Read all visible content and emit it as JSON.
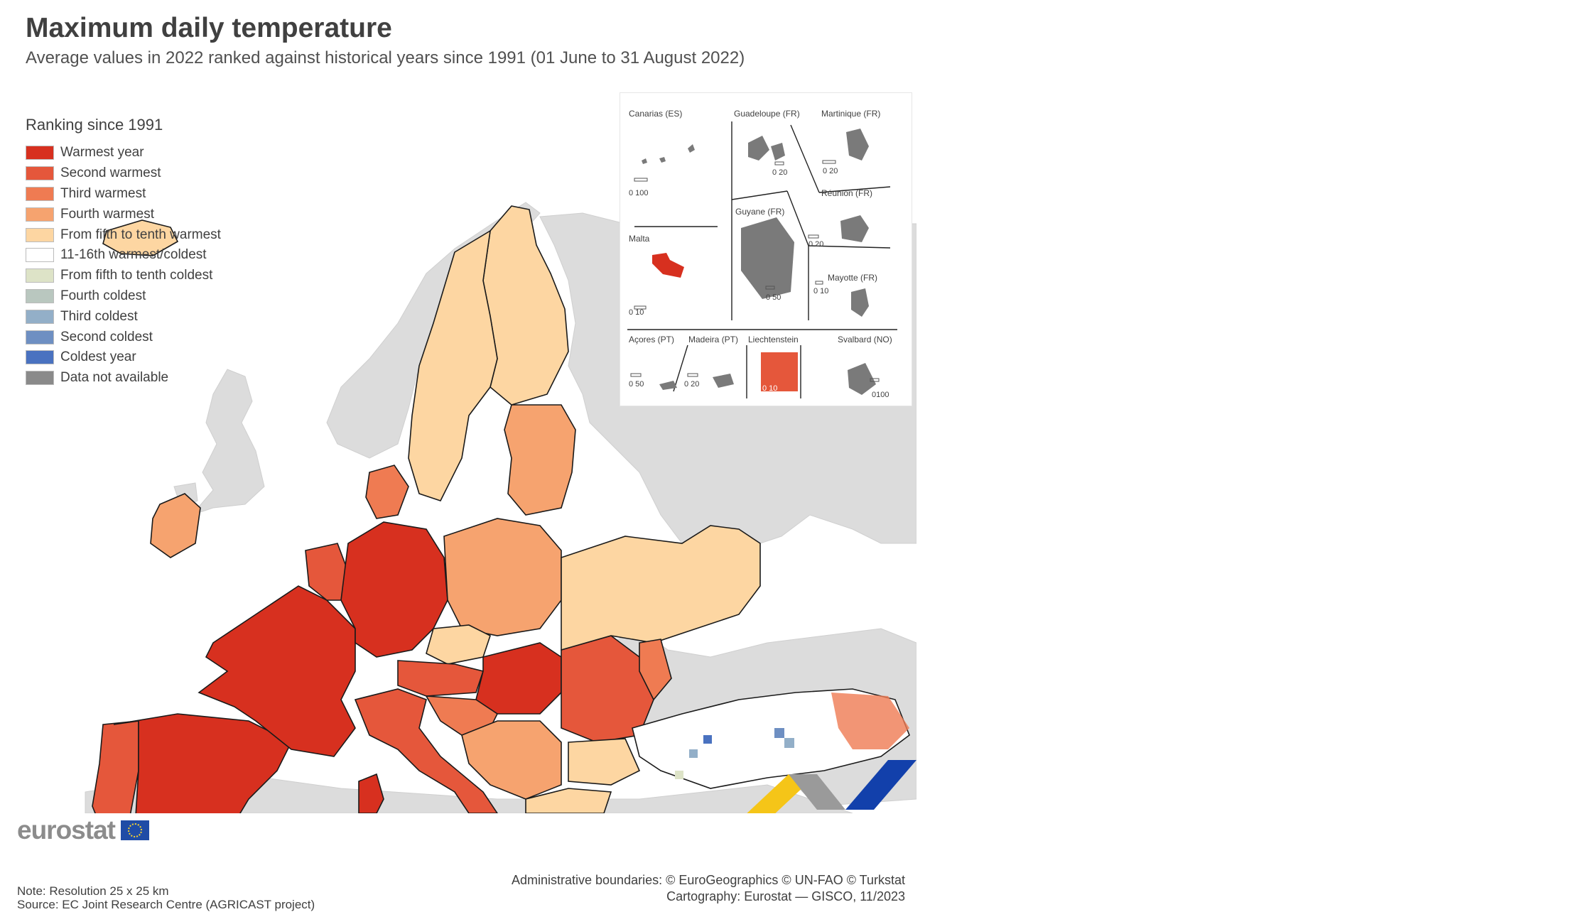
{
  "header": {
    "title": "Maximum daily temperature",
    "subtitle": "Average values in 2022 ranked against historical years since 1991 (01 June to 31 August 2022)"
  },
  "legend": {
    "title": "Ranking since 1991",
    "items": [
      {
        "label": "Warmest year",
        "color": "#d7301f"
      },
      {
        "label": "Second warmest",
        "color": "#e5573b"
      },
      {
        "label": "Third warmest",
        "color": "#ef7b52"
      },
      {
        "label": "Fourth warmest",
        "color": "#f6a36f"
      },
      {
        "label": "From fifth to tenth warmest",
        "color": "#fdd6a2"
      },
      {
        "label": "11-16th warmest/coldest",
        "color": "#ffffff"
      },
      {
        "label": "From fifth to tenth coldest",
        "color": "#dde3c7"
      },
      {
        "label": "Fourth coldest",
        "color": "#b9c7bf"
      },
      {
        "label": "Third coldest",
        "color": "#93afc8"
      },
      {
        "label": "Second coldest",
        "color": "#6e8fc2"
      },
      {
        "label": "Coldest year",
        "color": "#4a72c0"
      },
      {
        "label": "Data not available",
        "color": "#8a8a8a"
      }
    ]
  },
  "insets": {
    "canarias": {
      "label": "Canarias (ES)",
      "scale": "0   100"
    },
    "guadeloupe": {
      "label": "Guadeloupe (FR)",
      "scale": "0  20"
    },
    "martinique": {
      "label": "Martinique (FR)",
      "scale": "0   20"
    },
    "reunion": {
      "label": "Réunion (FR)",
      "scale": "0   20"
    },
    "guyane": {
      "label": "Guyane (FR)",
      "scale": "0 50"
    },
    "malta": {
      "label": "Malta",
      "scale": "0   10"
    },
    "mayotte": {
      "label": "Mayotte (FR)",
      "scale": "0 10"
    },
    "acores": {
      "label": "Açores (PT)",
      "scale": "0 50"
    },
    "madeira": {
      "label": "Madeira (PT)",
      "scale": "0 20"
    },
    "liechtenstein": {
      "label": "Liechtenstein",
      "scale": "0   10"
    },
    "svalbard": {
      "label": "Svalbard (NO)",
      "scale": "0100"
    }
  },
  "footer": {
    "logo": "eurostat",
    "note": "Note: Resolution 25 x 25 km",
    "source": "Source: EC Joint Research Centre (AGRICAST project)",
    "boundaries": "Administrative boundaries: © EuroGeographics © UN-FAO © Turkstat",
    "cartography": "Cartography: Eurostat — GISCO, 11/2023"
  },
  "map_colors": {
    "land_outside": "#dcdcdc",
    "sea": "#ffffff",
    "border": "#1a1a1a",
    "brand_yellow": "#f5c518",
    "brand_blue": "#1240ab",
    "brand_grey": "#9a9a9a"
  }
}
